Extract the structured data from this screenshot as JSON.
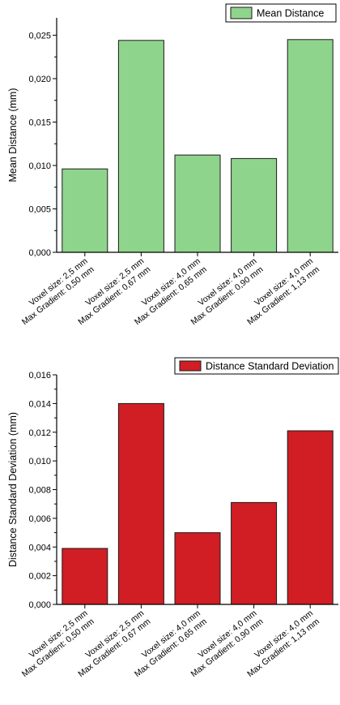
{
  "chart_data": [
    {
      "type": "bar",
      "title": "",
      "xlabel": "",
      "ylabel": "Mean Distance (mm)",
      "ylim": [
        0,
        0.027
      ],
      "yticks": [
        "0,000",
        "0,005",
        "0,010",
        "0,015",
        "0,020",
        "0,025"
      ],
      "ytick_values": [
        0,
        0.005,
        0.01,
        0.015,
        0.02,
        0.025
      ],
      "categories": [
        [
          "Voxel size: 2,5 mm",
          "Max Gradient: 0,50 mm"
        ],
        [
          "Voxel size: 2,5 mm",
          "Max Gradient: 0,67 mm"
        ],
        [
          "Voxel size: 4,0 mm",
          "Max Gradient: 0,65 mm"
        ],
        [
          "Voxel size: 4,0 mm",
          "Max Gradient: 0,90 mm"
        ],
        [
          "Voxel size: 4,0 mm",
          "Max Gradient: 1,13 mm"
        ]
      ],
      "series": [
        {
          "name": "Mean Distance",
          "color": "#8fd48c",
          "values": [
            0.0096,
            0.0244,
            0.0112,
            0.0108,
            0.0245
          ]
        }
      ],
      "grid": false,
      "legend_position": "top-right"
    },
    {
      "type": "bar",
      "title": "",
      "xlabel": "",
      "ylabel": "Distance Standard Deviation (mm)",
      "ylim": [
        0,
        0.016
      ],
      "yticks": [
        "0,000",
        "0,002",
        "0,004",
        "0,006",
        "0,008",
        "0,010",
        "0,012",
        "0,014",
        "0,016"
      ],
      "ytick_values": [
        0,
        0.002,
        0.004,
        0.006,
        0.008,
        0.01,
        0.012,
        0.014,
        0.016
      ],
      "categories": [
        [
          "Voxel size: 2,5 mm",
          "Max Gradient: 0,50 mm"
        ],
        [
          "Voxel size: 2,5 mm",
          "Max Gradient: 0,67 mm"
        ],
        [
          "Voxel size: 4,0 mm",
          "Max Gradient: 0,65 mm"
        ],
        [
          "Voxel size: 4,0 mm",
          "Max Gradient: 0,90 mm"
        ],
        [
          "Voxel size: 4,0 mm",
          "Max Gradient: 1,13 mm"
        ]
      ],
      "series": [
        {
          "name": "Distance Standard Deviation",
          "color": "#d01e24",
          "values": [
            0.0039,
            0.014,
            0.005,
            0.0071,
            0.0121
          ]
        }
      ],
      "grid": false,
      "legend_position": "top-right"
    }
  ]
}
